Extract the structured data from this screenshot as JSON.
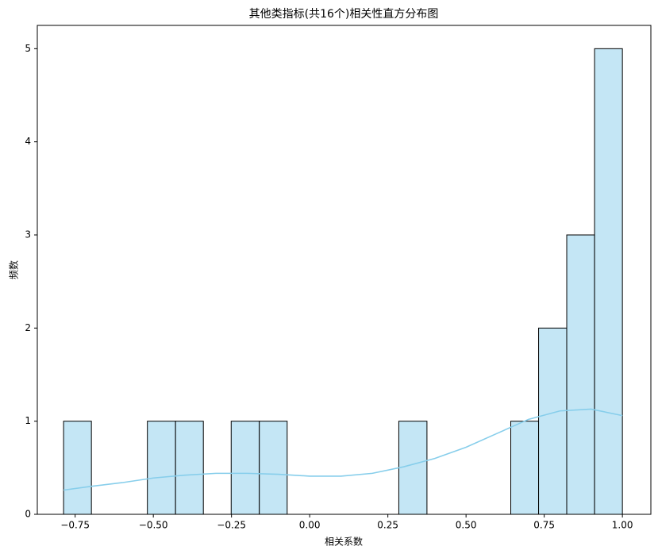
{
  "chart_data": {
    "type": "histogram",
    "title": "其他类指标(共16个)相关性直方分布图",
    "x_label": "相关系数",
    "y_label": "频数",
    "bins": [
      -0.787,
      -0.698,
      -0.608,
      -0.519,
      -0.429,
      -0.34,
      -0.251,
      -0.161,
      -0.072,
      0.017,
      0.107,
      0.196,
      0.285,
      0.375,
      0.464,
      0.553,
      0.643,
      0.732,
      0.822,
      0.911,
      1.0
    ],
    "counts": [
      1,
      0,
      0,
      1,
      1,
      0,
      1,
      1,
      0,
      0,
      0,
      0,
      1,
      0,
      0,
      0,
      1,
      2,
      3,
      5
    ],
    "color": "#c4e6f5",
    "edge_color": "#000000",
    "kde": {
      "color": "#87ceeb",
      "x": [
        -0.787,
        -0.7,
        -0.6,
        -0.5,
        -0.4,
        -0.3,
        -0.2,
        -0.1,
        0.0,
        0.1,
        0.2,
        0.3,
        0.4,
        0.5,
        0.6,
        0.7,
        0.8,
        0.9,
        1.0
      ],
      "values": [
        0.26,
        0.3,
        0.34,
        0.39,
        0.42,
        0.44,
        0.44,
        0.43,
        0.41,
        0.41,
        0.44,
        0.51,
        0.6,
        0.72,
        0.87,
        1.02,
        1.11,
        1.13,
        1.06
      ]
    },
    "xlim": [
      -0.871,
      1.091
    ],
    "ylim": [
      0,
      5.25
    ],
    "xticks": [
      {
        "value": -0.75,
        "label": "−0.75"
      },
      {
        "value": -0.5,
        "label": "−0.50"
      },
      {
        "value": -0.25,
        "label": "−0.25"
      },
      {
        "value": 0,
        "label": "0.00"
      },
      {
        "value": 0.25,
        "label": "0.25"
      },
      {
        "value": 0.5,
        "label": "0.50"
      },
      {
        "value": 0.75,
        "label": "0.75"
      },
      {
        "value": 1,
        "label": "1.00"
      }
    ],
    "yticks": [
      0,
      1,
      2,
      3,
      4,
      5
    ]
  }
}
